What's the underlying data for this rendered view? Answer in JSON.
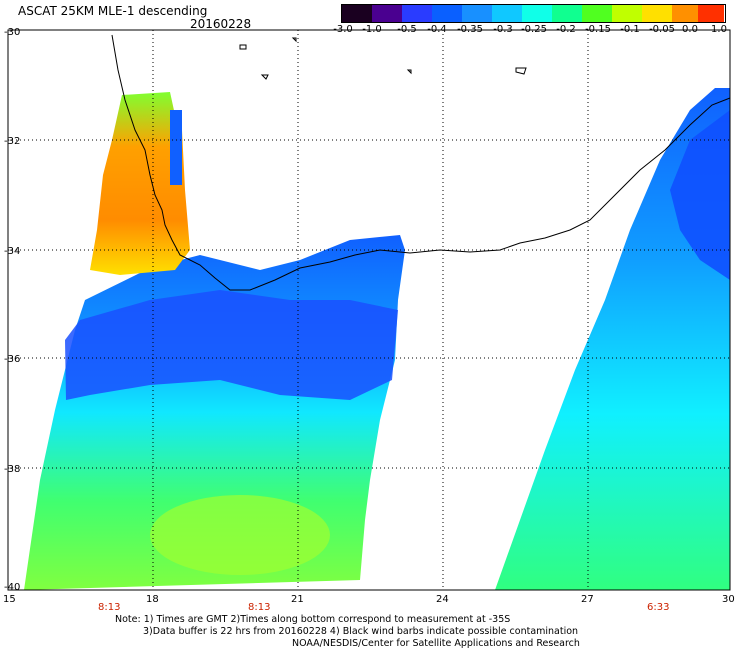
{
  "header": {
    "title": "ASCAT 25KM MLE-1 descending",
    "date": "20160228"
  },
  "colorbar": {
    "labels": [
      "-3.0",
      "-1.0",
      "-0.5",
      "-0.4",
      "-0.35",
      "-0.3",
      "-0.25",
      "-0.2",
      "-0.15",
      "-0.1",
      "-0.05",
      "0.0",
      "1.0"
    ],
    "colors": [
      "#1a0020",
      "#4a0090",
      "#2a3cff",
      "#0a60ff",
      "#1890ff",
      "#10c8ff",
      "#10ffe8",
      "#10ff90",
      "#50ff20",
      "#c0ff00",
      "#ffe000",
      "#ff9000",
      "#ff3000"
    ]
  },
  "map": {
    "lat_labels": [
      "-30",
      "-32",
      "-34",
      "-36",
      "-38",
      "-40"
    ],
    "lon_labels": [
      "15",
      "18",
      "21",
      "24",
      "27",
      "30"
    ],
    "time_labels": [
      "8:13",
      "8:13",
      "6:33"
    ],
    "time_label_color": "#cc2200"
  },
  "notes": {
    "line1": "Note: 1) Times are GMT 2)Times along bottom correspond to measurement at -35S",
    "line2": "3)Data buffer is 22 hrs from 20160228 4) Black wind barbs indicate possible contamination",
    "line3": "NOAA/NESDIS/Center for Satellite Applications and Research"
  }
}
